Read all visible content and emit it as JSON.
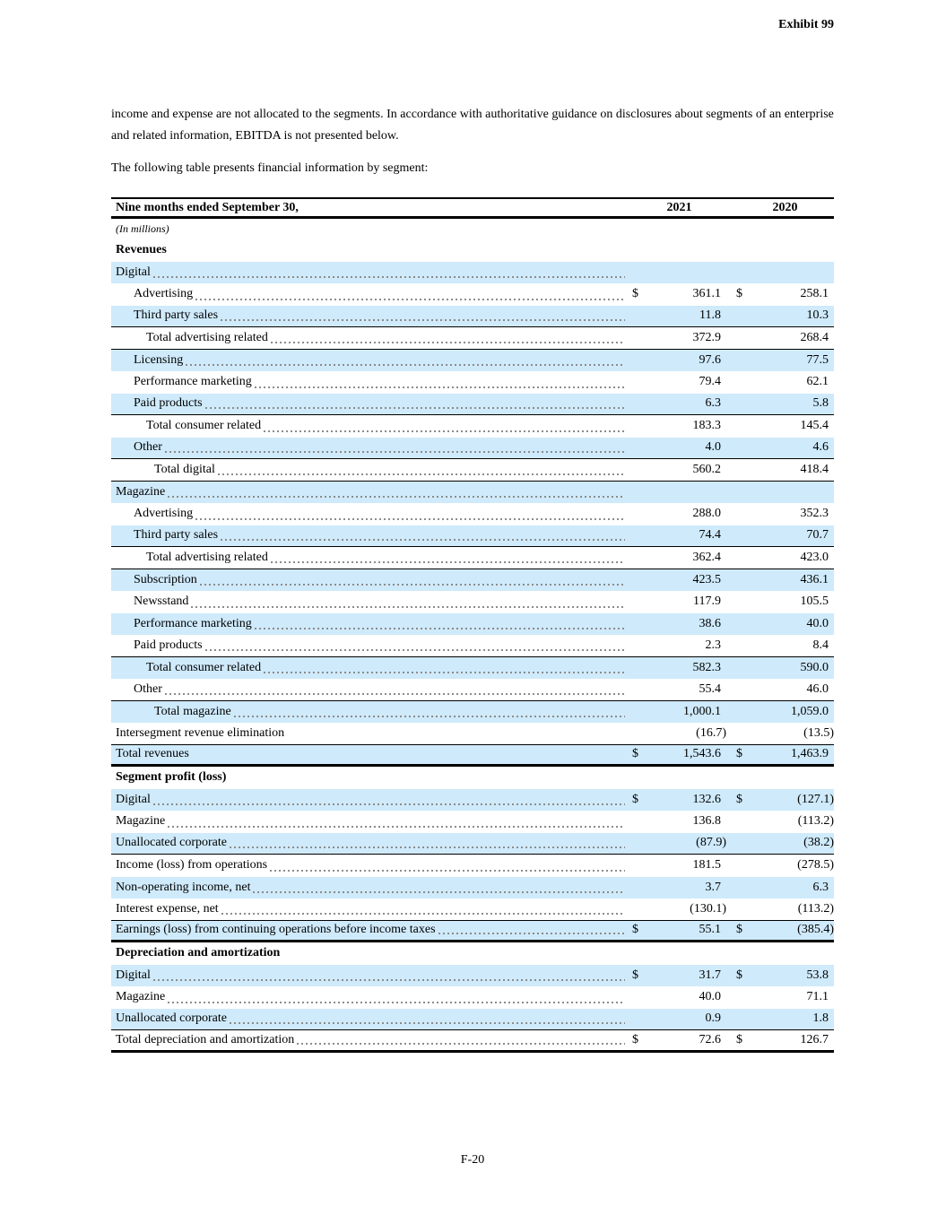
{
  "page": {
    "exhibit_label": "Exhibit 99",
    "intro_paragraph": "income and expense are not allocated to the segments. In accordance with authoritative guidance on disclosures about segments of an enterprise and related information, EBITDA is not presented below.",
    "table_intro": "The following table presents financial information by segment:",
    "footer": "F-20"
  },
  "colors": {
    "row_shade": "#cfeafb",
    "rule": "#000000",
    "leader_dots": "#8c8c8c"
  },
  "table": {
    "header": {
      "label": "Nine months ended September 30,",
      "col1": "2021",
      "col2": "2020"
    },
    "units_note": "(In millions)",
    "rows": [
      {
        "label": "Revenues",
        "bold": true,
        "indent": 0,
        "shaded": false,
        "dots": false,
        "d1": "",
        "v1": "",
        "d2": "",
        "v2": "",
        "border": ""
      },
      {
        "label": "Digital",
        "indent": 0,
        "shaded": true,
        "dots": true,
        "d1": "",
        "v1": "",
        "d2": "",
        "v2": "",
        "border": ""
      },
      {
        "label": "Advertising",
        "indent": 1,
        "shaded": false,
        "dots": true,
        "d1": "$",
        "v1": "361.1",
        "d2": "$",
        "v2": "258.1",
        "border": ""
      },
      {
        "label": "Third party sales",
        "indent": 1,
        "shaded": true,
        "dots": true,
        "d1": "",
        "v1": "11.8",
        "d2": "",
        "v2": "10.3",
        "border": "single"
      },
      {
        "label": "Total advertising related",
        "indent": 2,
        "shaded": false,
        "dots": true,
        "d1": "",
        "v1": "372.9",
        "d2": "",
        "v2": "268.4",
        "border": "single"
      },
      {
        "label": "Licensing",
        "indent": 1,
        "shaded": true,
        "dots": true,
        "d1": "",
        "v1": "97.6",
        "d2": "",
        "v2": "77.5",
        "border": ""
      },
      {
        "label": "Performance marketing",
        "indent": 1,
        "shaded": false,
        "dots": true,
        "d1": "",
        "v1": "79.4",
        "d2": "",
        "v2": "62.1",
        "border": ""
      },
      {
        "label": "Paid products",
        "indent": 1,
        "shaded": true,
        "dots": true,
        "d1": "",
        "v1": "6.3",
        "d2": "",
        "v2": "5.8",
        "border": "single"
      },
      {
        "label": "Total consumer related",
        "indent": 2,
        "shaded": false,
        "dots": true,
        "d1": "",
        "v1": "183.3",
        "d2": "",
        "v2": "145.4",
        "border": ""
      },
      {
        "label": "Other",
        "indent": 1,
        "shaded": true,
        "dots": true,
        "d1": "",
        "v1": "4.0",
        "d2": "",
        "v2": "4.6",
        "border": "single"
      },
      {
        "label": "Total digital",
        "indent": 3,
        "shaded": false,
        "dots": true,
        "d1": "",
        "v1": "560.2",
        "d2": "",
        "v2": "418.4",
        "border": "single"
      },
      {
        "label": "Magazine",
        "indent": 0,
        "shaded": true,
        "dots": true,
        "d1": "",
        "v1": "",
        "d2": "",
        "v2": "",
        "border": ""
      },
      {
        "label": "Advertising",
        "indent": 1,
        "shaded": false,
        "dots": true,
        "d1": "",
        "v1": "288.0",
        "d2": "",
        "v2": "352.3",
        "border": ""
      },
      {
        "label": "Third party sales",
        "indent": 1,
        "shaded": true,
        "dots": true,
        "d1": "",
        "v1": "74.4",
        "d2": "",
        "v2": "70.7",
        "border": "single"
      },
      {
        "label": "Total advertising related",
        "indent": 2,
        "shaded": false,
        "dots": true,
        "d1": "",
        "v1": "362.4",
        "d2": "",
        "v2": "423.0",
        "border": "single"
      },
      {
        "label": "Subscription",
        "indent": 1,
        "shaded": true,
        "dots": true,
        "d1": "",
        "v1": "423.5",
        "d2": "",
        "v2": "436.1",
        "border": ""
      },
      {
        "label": "Newsstand",
        "indent": 1,
        "shaded": false,
        "dots": true,
        "d1": "",
        "v1": "117.9",
        "d2": "",
        "v2": "105.5",
        "border": ""
      },
      {
        "label": "Performance marketing",
        "indent": 1,
        "shaded": true,
        "dots": true,
        "d1": "",
        "v1": "38.6",
        "d2": "",
        "v2": "40.0",
        "border": ""
      },
      {
        "label": "Paid products",
        "indent": 1,
        "shaded": false,
        "dots": true,
        "d1": "",
        "v1": "2.3",
        "d2": "",
        "v2": "8.4",
        "border": "single"
      },
      {
        "label": "Total consumer related",
        "indent": 2,
        "shaded": true,
        "dots": true,
        "d1": "",
        "v1": "582.3",
        "d2": "",
        "v2": "590.0",
        "border": ""
      },
      {
        "label": "Other",
        "indent": 1,
        "shaded": false,
        "dots": true,
        "d1": "",
        "v1": "55.4",
        "d2": "",
        "v2": "46.0",
        "border": "single"
      },
      {
        "label": "Total magazine",
        "indent": 3,
        "shaded": true,
        "dots": true,
        "d1": "",
        "v1": "1,000.1",
        "d2": "",
        "v2": "1,059.0",
        "border": ""
      },
      {
        "label": "Intersegment revenue elimination",
        "indent": 0,
        "shaded": false,
        "dots": false,
        "d1": "",
        "v1": "(16.7)",
        "d2": "",
        "v2": "(13.5)",
        "border": "single"
      },
      {
        "label": "Total revenues",
        "indent": 0,
        "shaded": true,
        "dots": false,
        "d1": "$",
        "v1": "1,543.6",
        "d2": "$",
        "v2": "1,463.9",
        "border": "thick"
      },
      {
        "label": "Segment profit (loss)",
        "bold": true,
        "indent": 0,
        "shaded": false,
        "dots": false,
        "d1": "",
        "v1": "",
        "d2": "",
        "v2": "",
        "border": ""
      },
      {
        "label": "Digital",
        "indent": 0,
        "shaded": true,
        "dots": true,
        "d1": "$",
        "v1": "132.6",
        "d2": "$",
        "v2": "(127.1)",
        "border": ""
      },
      {
        "label": "Magazine",
        "indent": 0,
        "shaded": false,
        "dots": true,
        "d1": "",
        "v1": "136.8",
        "d2": "",
        "v2": "(113.2)",
        "border": ""
      },
      {
        "label": "Unallocated corporate",
        "indent": 0,
        "shaded": true,
        "dots": true,
        "d1": "",
        "v1": "(87.9)",
        "d2": "",
        "v2": "(38.2)",
        "border": "single"
      },
      {
        "label": "Income (loss) from operations",
        "indent": 0,
        "shaded": false,
        "dots": true,
        "d1": "",
        "v1": "181.5",
        "d2": "",
        "v2": "(278.5)",
        "border": ""
      },
      {
        "label": "Non-operating income, net",
        "indent": 0,
        "shaded": true,
        "dots": true,
        "d1": "",
        "v1": "3.7",
        "d2": "",
        "v2": "6.3",
        "border": ""
      },
      {
        "label": "Interest expense, net",
        "indent": 0,
        "shaded": false,
        "dots": true,
        "d1": "",
        "v1": "(130.1)",
        "d2": "",
        "v2": "(113.2)",
        "border": "single"
      },
      {
        "label": "Earnings (loss) from continuing operations before income taxes",
        "indent": 0,
        "shaded": true,
        "dots": true,
        "d1": "$",
        "v1": "55.1",
        "d2": "$",
        "v2": "(385.4)",
        "border": "thick"
      },
      {
        "label": "Depreciation and amortization",
        "bold": true,
        "indent": 0,
        "shaded": false,
        "dots": false,
        "d1": "",
        "v1": "",
        "d2": "",
        "v2": "",
        "border": ""
      },
      {
        "label": "Digital",
        "indent": 0,
        "shaded": true,
        "dots": true,
        "d1": "$",
        "v1": "31.7",
        "d2": "$",
        "v2": "53.8",
        "border": ""
      },
      {
        "label": "Magazine",
        "indent": 0,
        "shaded": false,
        "dots": true,
        "d1": "",
        "v1": "40.0",
        "d2": "",
        "v2": "71.1",
        "border": ""
      },
      {
        "label": "Unallocated corporate",
        "indent": 0,
        "shaded": true,
        "dots": true,
        "d1": "",
        "v1": "0.9",
        "d2": "",
        "v2": "1.8",
        "border": "single"
      },
      {
        "label": "Total depreciation and amortization",
        "indent": 0,
        "shaded": false,
        "dots": true,
        "d1": "$",
        "v1": "72.6",
        "d2": "$",
        "v2": "126.7",
        "border": "thick"
      }
    ]
  }
}
